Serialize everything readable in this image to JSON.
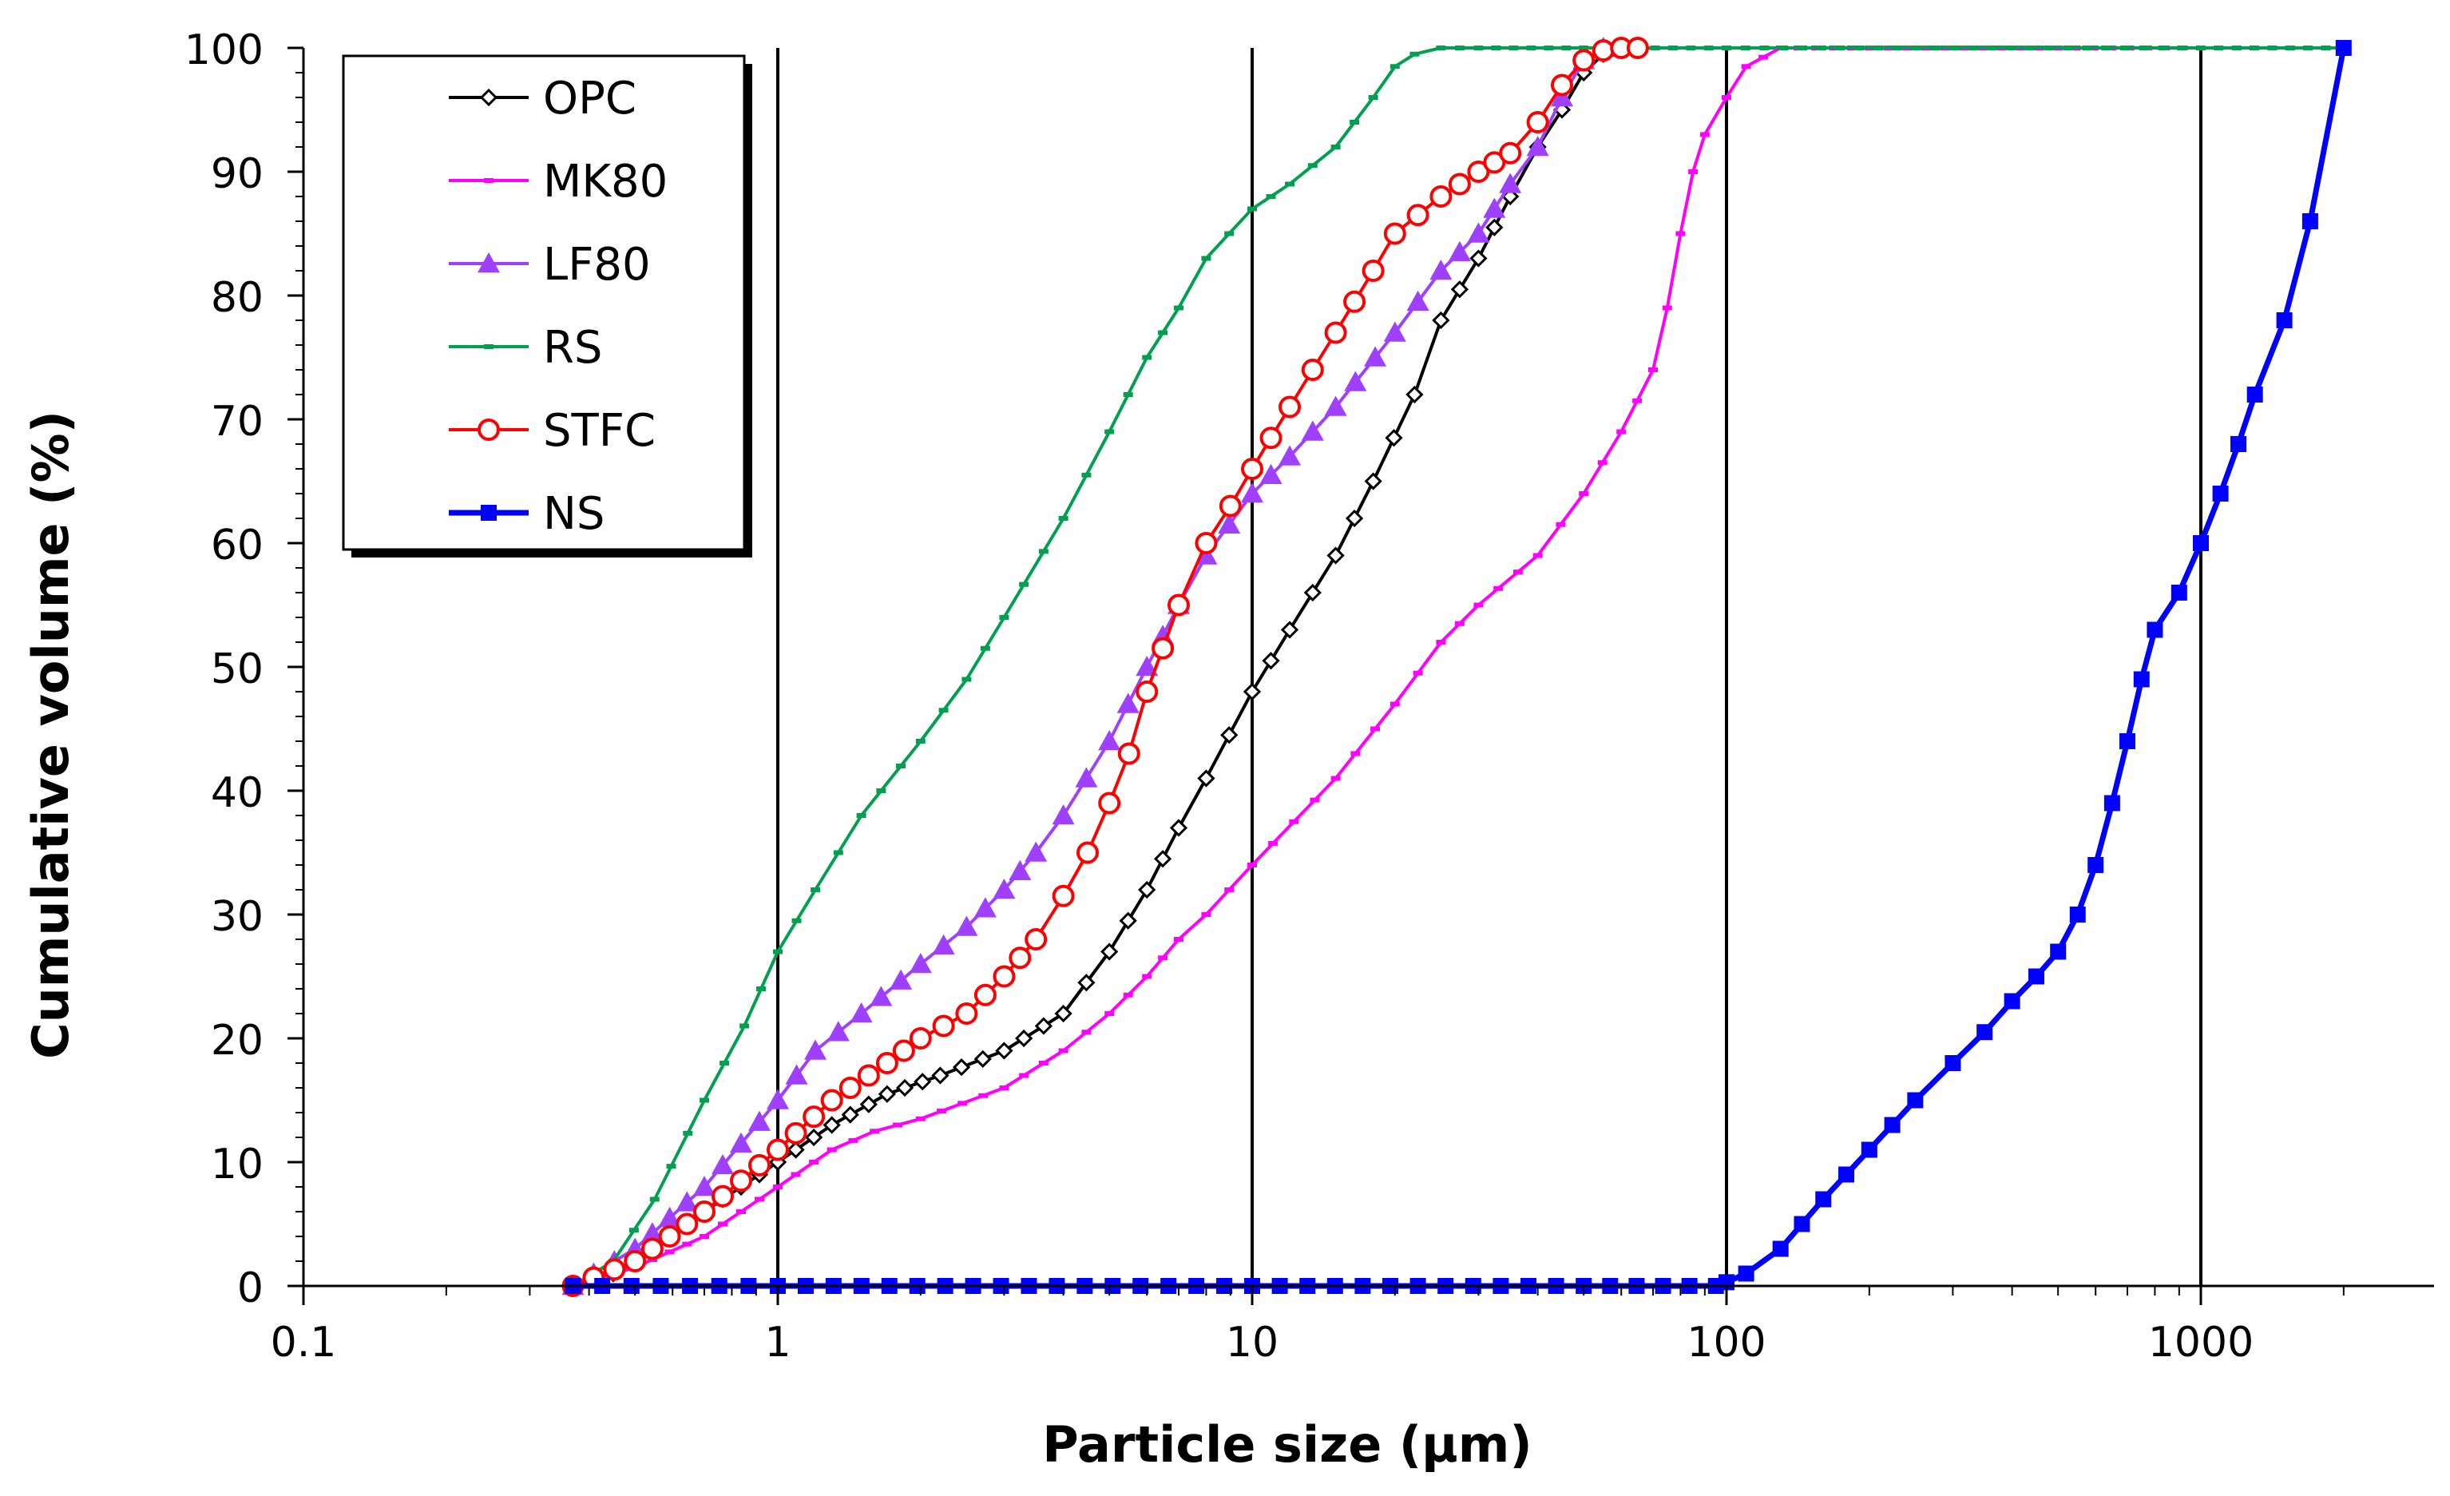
{
  "chart_data": {
    "type": "line",
    "title": "",
    "xlabel": "Particle size (µm)",
    "ylabel": "Cumulative volume (%)",
    "xscale": "log",
    "xlim": [
      0.1,
      2000
    ],
    "ylim": [
      0,
      100
    ],
    "x_ticks": [
      0.1,
      1,
      10,
      100,
      1000
    ],
    "x_tick_labels": [
      "0.1",
      "1",
      "10",
      "100",
      "1000"
    ],
    "y_ticks": [
      0,
      10,
      20,
      30,
      40,
      50,
      60,
      70,
      80,
      90,
      100
    ],
    "y_tick_labels": [
      "0",
      "10",
      "20",
      "30",
      "40",
      "50",
      "60",
      "70",
      "80",
      "90",
      "100"
    ],
    "grid": "vertical lines at decades",
    "legend_position": "top-left",
    "series": [
      {
        "name": "OPC",
        "color": "#000000",
        "marker": "diamond-open",
        "x": [
          0.37,
          0.45,
          0.55,
          0.7,
          1,
          1.3,
          1.7,
          2.2,
          3,
          4,
          5,
          6,
          7,
          8,
          10,
          12,
          15,
          18,
          22,
          25,
          30,
          35,
          40,
          45,
          50,
          55,
          60
        ],
        "y": [
          0,
          1,
          3,
          6,
          10,
          13,
          15.5,
          17,
          19,
          22,
          27,
          32,
          37,
          41,
          48,
          53,
          59,
          65,
          72,
          78,
          83,
          88,
          92,
          95,
          98,
          99.5,
          100
        ]
      },
      {
        "name": "MK80",
        "color": "#FF00FF",
        "marker": "dash-small",
        "x": [
          0.37,
          0.5,
          0.7,
          1,
          1.3,
          1.6,
          2,
          3,
          4,
          5,
          6,
          7,
          8,
          10,
          15,
          20,
          25,
          30,
          40,
          50,
          60,
          70,
          75,
          80,
          85,
          90,
          100,
          110,
          130,
          200,
          500,
          1000,
          2000
        ],
        "y": [
          0,
          1.5,
          4,
          8,
          11,
          12.5,
          13.5,
          16,
          19,
          22,
          25,
          28,
          30,
          34,
          41,
          47,
          52,
          55,
          59,
          64,
          69,
          74,
          79,
          85,
          90,
          93,
          96,
          98.5,
          100,
          100,
          100,
          100,
          100
        ]
      },
      {
        "name": "LF80",
        "color": "#A040FF",
        "marker": "triangle",
        "x": [
          0.37,
          0.5,
          0.7,
          1,
          1.2,
          1.5,
          2,
          2.5,
          3,
          3.5,
          4,
          5,
          6,
          7,
          8,
          10,
          12,
          15,
          20,
          25,
          30,
          35,
          40,
          45,
          50,
          55
        ],
        "y": [
          0,
          3,
          8,
          15,
          19,
          22,
          26,
          29,
          32,
          35,
          38,
          44,
          50,
          55,
          59,
          64,
          67,
          71,
          77,
          82,
          85,
          89,
          92,
          96,
          99,
          100
        ]
      },
      {
        "name": "RS",
        "color": "#00A050",
        "marker": "dash-small",
        "x": [
          0.37,
          0.45,
          0.55,
          0.7,
          0.85,
          1,
          1.2,
          1.5,
          2,
          2.5,
          3,
          4,
          5,
          6,
          7,
          8,
          10,
          12,
          15,
          18,
          20,
          22,
          25,
          30,
          50,
          100,
          1000,
          2000
        ],
        "y": [
          0,
          2,
          7,
          15,
          21,
          27,
          32,
          38,
          44,
          49,
          54,
          62,
          69,
          75,
          79,
          83,
          87,
          89,
          92,
          96,
          98.5,
          99.5,
          100,
          100,
          100,
          100,
          100,
          100
        ]
      },
      {
        "name": "STFC",
        "color": "#FF0000",
        "marker": "circle-open",
        "x": [
          0.37,
          0.5,
          0.7,
          1,
          1.3,
          1.7,
          2,
          2.5,
          3,
          3.5,
          4,
          4.5,
          5,
          5.5,
          6,
          7,
          8,
          9,
          10,
          12,
          15,
          18,
          20,
          25,
          30,
          35,
          40,
          45,
          50,
          55,
          60,
          65
        ],
        "y": [
          0,
          2,
          6,
          11,
          15,
          18,
          20,
          22,
          25,
          28,
          31.5,
          35,
          39,
          43,
          48,
          55,
          60,
          63,
          66,
          71,
          77,
          82,
          85,
          88,
          90,
          91.5,
          94,
          97,
          99,
          99.8,
          100,
          100
        ]
      },
      {
        "name": "NS",
        "color": "#0000FF",
        "marker": "square",
        "x": [
          0.37,
          1,
          10,
          50,
          95,
          100,
          110,
          130,
          160,
          200,
          250,
          300,
          350,
          400,
          450,
          500,
          550,
          600,
          650,
          700,
          750,
          800,
          900,
          1000,
          1100,
          1200,
          1300,
          1500,
          1700,
          2000
        ],
        "y": [
          0,
          0,
          0,
          0,
          0,
          0.3,
          1,
          3,
          7,
          11,
          15,
          18,
          20.5,
          23,
          25,
          27,
          30,
          34,
          39,
          44,
          49,
          53,
          56,
          60,
          64,
          68,
          72,
          78,
          86,
          100
        ]
      }
    ]
  }
}
